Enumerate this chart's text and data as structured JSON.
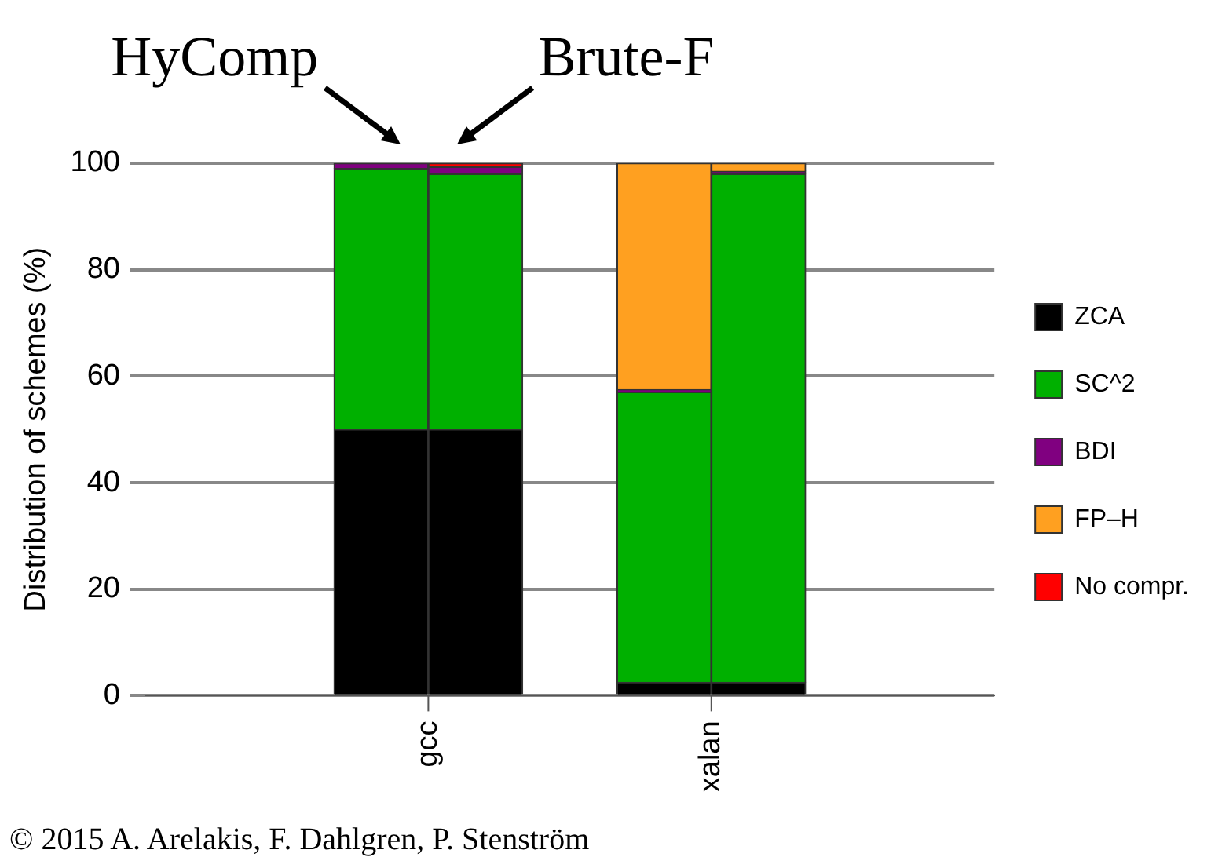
{
  "chart_data": {
    "type": "bar",
    "ylabel": "Distribution of schemes (%)",
    "categories": [
      null,
      null,
      null,
      null,
      null,
      null,
      null,
      null,
      null
    ],
    "ylim": [
      0,
      100
    ],
    "yticks": [
      0,
      20,
      40,
      60,
      80,
      100
    ],
    "grid": "y",
    "stacked": true,
    "legend": "right",
    "series": [
      {
        "name": "ZCA",
        "color": "#000000",
        "values": [
          null,
          null,
          50,
          50,
          null,
          2.5,
          2.5,
          null,
          null
        ]
      },
      {
        "name": "SC^2",
        "color": "#00b000",
        "values": [
          null,
          null,
          49,
          48,
          null,
          54.5,
          95.5,
          null,
          null
        ]
      },
      {
        "name": "BDI",
        "color": "#800080",
        "values": [
          null,
          null,
          1,
          1.3,
          null,
          0.5,
          0.5,
          null,
          null
        ]
      },
      {
        "name": "FP–H",
        "color": "#ffa020",
        "values": [
          null,
          null,
          0,
          0,
          null,
          42.5,
          1.5,
          null,
          null
        ]
      },
      {
        "name": "No compr.",
        "color": "#ff0000",
        "values": [
          null,
          null,
          0,
          0.7,
          null,
          0,
          0,
          null,
          null
        ]
      }
    ],
    "annotations": [
      "HyComp",
      "Brute-F",
      "gcc",
      "xalan",
      "© 2015 A. Arelakis, F. Dahlgren, P. Stenström"
    ]
  }
}
